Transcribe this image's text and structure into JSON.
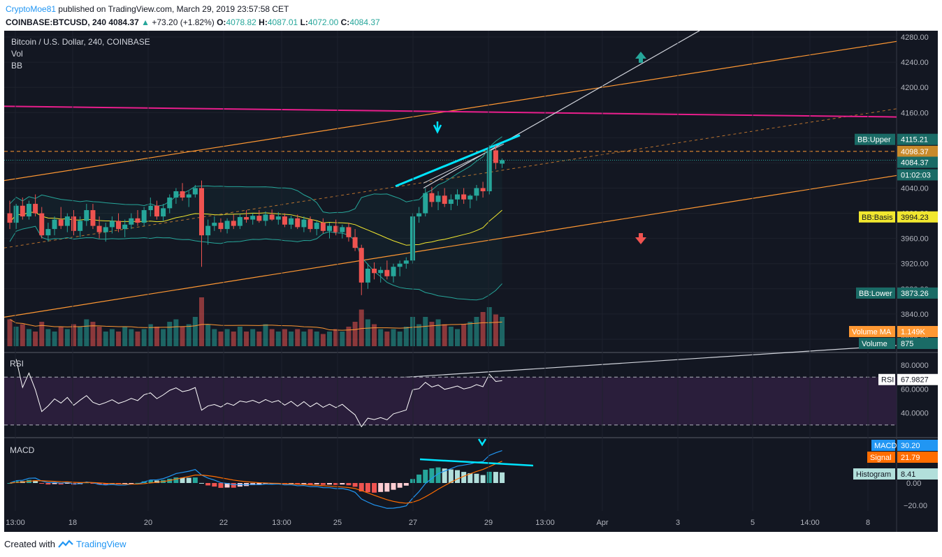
{
  "header": {
    "author": "CryptoMoe81",
    "published": "published on TradingView.com, March 29, 2019 23:57:58 CET",
    "symbol": "COINBASE:BTCUSD, 240",
    "last": "4084.37",
    "change": "+73.20 (+1.82%)",
    "o_label": "O:",
    "o": "4078.82",
    "h_label": "H:",
    "h": "4087.01",
    "l_label": "L:",
    "l": "4072.00",
    "c_label": "C:",
    "c": "4084.37"
  },
  "legend": {
    "title": "Bitcoin / U.S. Dollar, 240, COINBASE",
    "vol": "Vol",
    "bb": "BB"
  },
  "price_axis": [
    "4280.00",
    "4240.00",
    "4200.00",
    "4160.00",
    "4120.00",
    "4080.00",
    "4040.00",
    "4000.00",
    "3960.00",
    "3920.00",
    "3880.00",
    "3840.00",
    "3800.00"
  ],
  "time_axis": [
    "13:00",
    "18",
    "20",
    "22",
    "13:00",
    "25",
    "27",
    "29",
    "13:00",
    "Apr",
    "3",
    "5",
    "14:00",
    "8"
  ],
  "right_tags": {
    "bb_upper_name": "BB:Upper",
    "bb_upper": "4115.21",
    "resistance": "4098.37",
    "last_price": "4084.37",
    "countdown": "01:02:03",
    "bb_basis_name": "BB:Basis",
    "bb_basis": "3994.23",
    "bb_lower_name": "BB:Lower",
    "bb_lower": "3873.26",
    "vol_ma_name": "Volume MA",
    "vol_ma": "1.149K",
    "volume_name": "Volume",
    "volume": "875"
  },
  "rsi": {
    "label": "RSI",
    "axis": [
      "80.0000",
      "60.0000",
      "40.0000"
    ],
    "tag_name": "RSI",
    "value": "67.9827"
  },
  "macd": {
    "label": "MACD",
    "axis": [
      "0.00",
      "−20.00"
    ],
    "macd_name": "MACD",
    "macd": "30.20",
    "signal_name": "Signal",
    "signal": "21.79",
    "hist_name": "Histogram",
    "hist": "8.41"
  },
  "footer": {
    "created": "Created with",
    "brand": "TradingView"
  },
  "colors": {
    "bg": "#131722",
    "up": "#26a69a",
    "down": "#ef5350",
    "bb": "#26a69a",
    "basis": "#f1e72f",
    "channel": "#ff9833",
    "magenta": "#e91e8c",
    "cyan": "#00e5ff",
    "rsi_fill": "#2a1e3b",
    "macd_line": "#2196f3",
    "signal_line": "#ff6d00"
  },
  "chart_data": {
    "type": "candlestick",
    "symbol": "COINBASE:BTCUSD",
    "timeframe": "240",
    "ylim": [
      3780,
      4290
    ],
    "candles": [
      [
        4000,
        4020,
        3975,
        3985
      ],
      [
        3985,
        4015,
        3975,
        4012
      ],
      [
        4012,
        4025,
        3990,
        3995
      ],
      [
        3995,
        4020,
        3990,
        4015
      ],
      [
        4015,
        4030,
        3995,
        4000
      ],
      [
        4000,
        4010,
        3960,
        3965
      ],
      [
        3965,
        3985,
        3955,
        3975
      ],
      [
        3975,
        3995,
        3965,
        3990
      ],
      [
        3990,
        4010,
        3975,
        3980
      ],
      [
        3980,
        4000,
        3970,
        3995
      ],
      [
        3995,
        4005,
        3965,
        3972
      ],
      [
        3972,
        3995,
        3962,
        3988
      ],
      [
        3988,
        4015,
        3980,
        4005
      ],
      [
        4005,
        4015,
        3975,
        3980
      ],
      [
        3980,
        3995,
        3960,
        3970
      ],
      [
        3970,
        3985,
        3955,
        3978
      ],
      [
        3978,
        3995,
        3968,
        3988
      ],
      [
        3988,
        4000,
        3970,
        3975
      ],
      [
        3975,
        3990,
        3962,
        3982
      ],
      [
        3982,
        4000,
        3975,
        3992
      ],
      [
        3992,
        4005,
        3980,
        3985
      ],
      [
        3985,
        4010,
        3980,
        4005
      ],
      [
        4005,
        4025,
        3995,
        4012
      ],
      [
        4012,
        4020,
        3990,
        3995
      ],
      [
        3995,
        4015,
        3988,
        4008
      ],
      [
        4008,
        4030,
        4000,
        4025
      ],
      [
        4025,
        4040,
        4015,
        4035
      ],
      [
        4035,
        4048,
        4020,
        4025
      ],
      [
        4025,
        4035,
        4010,
        4030
      ],
      [
        4030,
        4045,
        4025,
        4040
      ],
      [
        4040,
        4052,
        3915,
        3965
      ],
      [
        3965,
        3990,
        3950,
        3980
      ],
      [
        3980,
        3995,
        3972,
        3985
      ],
      [
        3985,
        3992,
        3970,
        3975
      ],
      [
        3975,
        3992,
        3968,
        3988
      ],
      [
        3988,
        3998,
        3975,
        3980
      ],
      [
        3980,
        3998,
        3975,
        3994
      ],
      [
        3994,
        4005,
        3985,
        3990
      ],
      [
        3990,
        4000,
        3982,
        3996
      ],
      [
        3996,
        4005,
        3985,
        3988
      ],
      [
        3988,
        4003,
        3980,
        3998
      ],
      [
        3998,
        4006,
        3988,
        3990
      ],
      [
        3990,
        4002,
        3982,
        3995
      ],
      [
        3995,
        4000,
        3978,
        3982
      ],
      [
        3982,
        3996,
        3975,
        3992
      ],
      [
        3992,
        3998,
        3975,
        3978
      ],
      [
        3978,
        3995,
        3970,
        3990
      ],
      [
        3990,
        3995,
        3970,
        3975
      ],
      [
        3975,
        3988,
        3965,
        3985
      ],
      [
        3985,
        3992,
        3968,
        3972
      ],
      [
        3972,
        3985,
        3960,
        3980
      ],
      [
        3980,
        3990,
        3965,
        3970
      ],
      [
        3970,
        3982,
        3960,
        3978
      ],
      [
        3978,
        3985,
        3955,
        3962
      ],
      [
        3962,
        3975,
        3940,
        3945
      ],
      [
        3945,
        3950,
        3870,
        3890
      ],
      [
        3890,
        3920,
        3880,
        3912
      ],
      [
        3912,
        3922,
        3895,
        3905
      ],
      [
        3905,
        3915,
        3890,
        3910
      ],
      [
        3910,
        3925,
        3895,
        3900
      ],
      [
        3900,
        3920,
        3890,
        3915
      ],
      [
        3915,
        3925,
        3900,
        3920
      ],
      [
        3920,
        3930,
        3912,
        3925
      ],
      [
        3925,
        4000,
        3920,
        3995
      ],
      [
        3995,
        4010,
        3985,
        4000
      ],
      [
        4000,
        4040,
        3995,
        4032
      ],
      [
        4032,
        4042,
        4010,
        4018
      ],
      [
        4018,
        4035,
        4005,
        4028
      ],
      [
        4028,
        4040,
        4010,
        4015
      ],
      [
        4015,
        4030,
        4005,
        4022
      ],
      [
        4022,
        4038,
        4012,
        4030
      ],
      [
        4030,
        4040,
        4015,
        4022
      ],
      [
        4022,
        4030,
        4008,
        4028
      ],
      [
        4028,
        4045,
        4020,
        4040
      ],
      [
        4040,
        4050,
        4025,
        4035
      ],
      [
        4035,
        4108,
        4030,
        4100
      ],
      [
        4100,
        4108,
        4070,
        4080
      ],
      [
        4078.82,
        4087.01,
        4072.0,
        4084.37
      ]
    ],
    "volume_relative": [
      0.55,
      0.4,
      0.45,
      0.35,
      0.3,
      0.5,
      0.35,
      0.3,
      0.4,
      0.35,
      0.45,
      0.4,
      0.55,
      0.5,
      0.4,
      0.3,
      0.35,
      0.3,
      0.4,
      0.35,
      0.3,
      0.35,
      0.45,
      0.4,
      0.35,
      0.5,
      0.55,
      0.4,
      0.45,
      0.6,
      1.0,
      0.45,
      0.35,
      0.3,
      0.35,
      0.3,
      0.4,
      0.3,
      0.35,
      0.3,
      0.45,
      0.35,
      0.3,
      0.35,
      0.3,
      0.35,
      0.3,
      0.35,
      0.3,
      0.25,
      0.3,
      0.35,
      0.3,
      0.4,
      0.5,
      0.75,
      0.55,
      0.45,
      0.35,
      0.3,
      0.35,
      0.3,
      0.4,
      0.6,
      0.45,
      0.6,
      0.5,
      0.55,
      0.45,
      0.4,
      0.35,
      0.45,
      0.5,
      0.6,
      0.7,
      0.8,
      0.65,
      0.6
    ],
    "volume_last": 875,
    "volume_ma": 1149,
    "bb_upper_last": 4115.21,
    "bb_basis_last": 3994.23,
    "bb_lower_last": 3873.26,
    "rsi_last": 67.9827,
    "rsi_levels": [
      70,
      30
    ],
    "macd_last": 30.2,
    "signal_last": 21.79,
    "histogram_last": 8.41
  }
}
